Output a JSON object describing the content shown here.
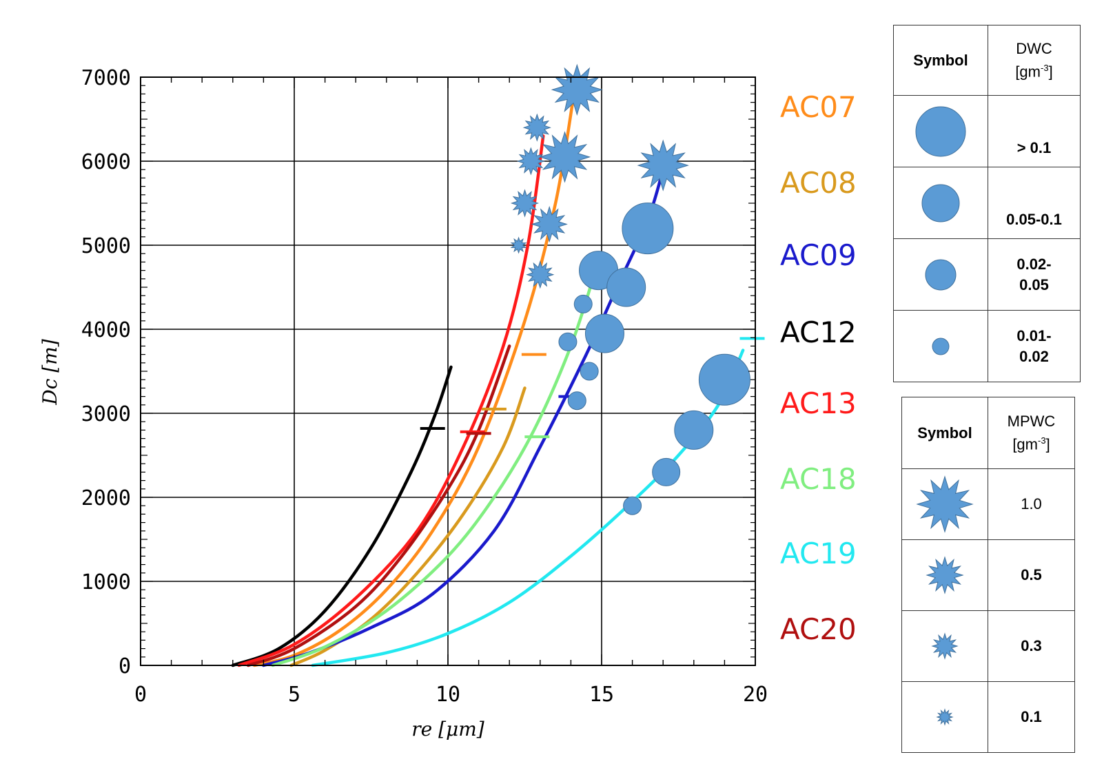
{
  "chart_data": {
    "type": "line",
    "xlabel": "re [μm]",
    "ylabel": "Dc [m]",
    "xlim": [
      0,
      20
    ],
    "ylim": [
      0,
      7000
    ],
    "x_ticks": [
      0,
      5,
      10,
      15,
      20
    ],
    "y_ticks": [
      0,
      1000,
      2000,
      3000,
      4000,
      5000,
      6000,
      7000
    ],
    "x_tick_labels": [
      "0",
      "5",
      "10",
      "15",
      "20"
    ],
    "y_tick_labels": [
      "0",
      "1000",
      "2000",
      "3000",
      "4000",
      "5000",
      "6000",
      "7000"
    ],
    "grid": true,
    "legend_position": "right",
    "series": [
      {
        "name": "AC07",
        "color": "#ff8c1a",
        "x": [
          3.7,
          5,
          6.5,
          8,
          9.5,
          11,
          12.5,
          13.5,
          14.1
        ],
        "y": [
          0,
          120,
          420,
          900,
          1600,
          2600,
          4100,
          5500,
          6800
        ]
      },
      {
        "name": "AC08",
        "color": "#d99a1e",
        "x": [
          4.9,
          6,
          7.5,
          9,
          10.5,
          11.8,
          12.5
        ],
        "y": [
          0,
          180,
          550,
          1100,
          1800,
          2600,
          3300
        ]
      },
      {
        "name": "AC09",
        "color": "#1a1acc",
        "x": [
          4.0,
          5.5,
          7.5,
          9.5,
          11.5,
          13.0,
          14.5,
          15.5,
          16.5,
          17.0
        ],
        "y": [
          0,
          150,
          450,
          850,
          1600,
          2600,
          3700,
          4500,
          5300,
          5900
        ]
      },
      {
        "name": "AC12",
        "color": "#000000",
        "x": [
          3.0,
          4.5,
          6.0,
          7.5,
          8.8,
          9.6,
          10.1
        ],
        "y": [
          0,
          200,
          650,
          1400,
          2300,
          3000,
          3550
        ]
      },
      {
        "name": "AC13",
        "color": "#ff1a1a",
        "x": [
          3.2,
          5.0,
          7.0,
          9.0,
          10.5,
          11.8,
          12.6,
          13.1
        ],
        "y": [
          0,
          250,
          800,
          1600,
          2600,
          3800,
          5000,
          6300
        ]
      },
      {
        "name": "AC18",
        "color": "#80ee80",
        "x": [
          4.3,
          6.0,
          8.0,
          10.0,
          11.5,
          12.8,
          14.0,
          14.8
        ],
        "y": [
          0,
          220,
          650,
          1300,
          2000,
          2800,
          3800,
          4700
        ]
      },
      {
        "name": "AC19",
        "color": "#22e8f0",
        "x": [
          5.6,
          8.0,
          10.0,
          12.0,
          14.0,
          16.0,
          17.5,
          18.8,
          19.6
        ],
        "y": [
          0,
          150,
          380,
          750,
          1300,
          1950,
          2500,
          3100,
          3750
        ]
      },
      {
        "name": "AC20",
        "color": "#b01010",
        "x": [
          3.5,
          5.0,
          7.0,
          8.5,
          10.0,
          11.0,
          12.0
        ],
        "y": [
          0,
          200,
          700,
          1300,
          2100,
          2800,
          3800
        ]
      }
    ],
    "error_marks": [
      {
        "series": "AC12",
        "x": 9.5,
        "y": 2820
      },
      {
        "series": "AC13",
        "x": 10.8,
        "y": 2780
      },
      {
        "series": "AC20",
        "x": 11.0,
        "y": 2760
      },
      {
        "series": "AC08",
        "x": 11.5,
        "y": 3050
      },
      {
        "series": "AC07",
        "x": 12.8,
        "y": 3700
      },
      {
        "series": "AC18",
        "x": 12.9,
        "y": 2720
      },
      {
        "series": "AC09",
        "x": 14.0,
        "y": 3200
      },
      {
        "series": "AC19",
        "x": 19.9,
        "y": 3890
      }
    ],
    "dwc_markers": [
      {
        "x": 14.9,
        "y": 4700,
        "size": "0.05-0.1"
      },
      {
        "x": 14.4,
        "y": 4300,
        "size": "0.01-0.02"
      },
      {
        "x": 15.1,
        "y": 3950,
        "size": "0.05-0.1"
      },
      {
        "x": 13.9,
        "y": 3850,
        "size": "0.01-0.02"
      },
      {
        "x": 14.6,
        "y": 3500,
        "size": "0.01-0.02"
      },
      {
        "x": 14.2,
        "y": 3150,
        "size": "0.01-0.02"
      },
      {
        "x": 16.5,
        "y": 5200,
        "size": "> 0.1"
      },
      {
        "x": 15.8,
        "y": 4500,
        "size": "0.05-0.1"
      },
      {
        "x": 19.0,
        "y": 3400,
        "size": "> 0.1"
      },
      {
        "x": 18.0,
        "y": 2800,
        "size": "0.05-0.1"
      },
      {
        "x": 17.1,
        "y": 2300,
        "size": "0.02-0.05"
      },
      {
        "x": 16.0,
        "y": 1900,
        "size": "0.01-0.02"
      }
    ],
    "mpwc_markers": [
      {
        "x": 14.2,
        "y": 6850,
        "size": "1.0"
      },
      {
        "x": 13.8,
        "y": 6050,
        "size": "1.0"
      },
      {
        "x": 17.0,
        "y": 5950,
        "size": "1.0"
      },
      {
        "x": 13.3,
        "y": 5250,
        "size": "0.5"
      },
      {
        "x": 12.9,
        "y": 6400,
        "size": "0.3"
      },
      {
        "x": 12.7,
        "y": 6000,
        "size": "0.3"
      },
      {
        "x": 12.5,
        "y": 5500,
        "size": "0.3"
      },
      {
        "x": 13.0,
        "y": 4650,
        "size": "0.3"
      },
      {
        "x": 12.3,
        "y": 5000,
        "size": "0.1"
      }
    ]
  },
  "dwc_table": {
    "col1": "Symbol",
    "col2_line1": "DWC",
    "col2_line2_base": "[gm",
    "col2_line2_sup": "-3",
    "col2_line2_end": "]",
    "rows": [
      {
        "label_line1": "> 0.1",
        "label_line2": "",
        "size": 36
      },
      {
        "label_line1": "0.05-0.1",
        "label_line2": "",
        "size": 27
      },
      {
        "label_line1": "0.02-",
        "label_line2": "0.05",
        "size": 22
      },
      {
        "label_line1": "0.01-",
        "label_line2": "0.02",
        "size": 12
      }
    ]
  },
  "mpwc_table": {
    "col1": "Symbol",
    "col2_line1": "MPWC",
    "col2_line2_base": "[gm",
    "col2_line2_sup": "-3",
    "col2_line2_end": "]",
    "rows": [
      {
        "label": "1.0",
        "bold": false,
        "size": 40
      },
      {
        "label": "0.5",
        "bold": true,
        "size": 26
      },
      {
        "label": "0.3",
        "bold": true,
        "size": 18
      },
      {
        "label": "0.1",
        "bold": true,
        "size": 11
      }
    ]
  },
  "symbol_color": "#5b9bd5"
}
